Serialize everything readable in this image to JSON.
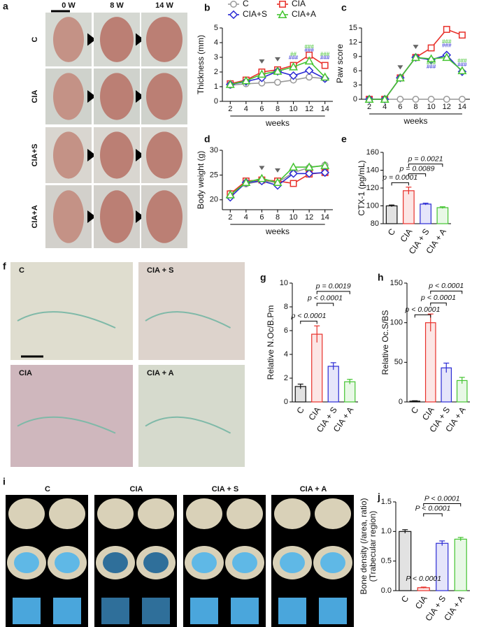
{
  "figure": {
    "a": {
      "label": "a",
      "columns": [
        "0 W",
        "8 W",
        "14 W"
      ],
      "rows": [
        "C",
        "CIA",
        "CIA+S",
        "CIA+A"
      ]
    },
    "f": {
      "label": "f",
      "images": [
        "C",
        "CIA + S",
        "CIA",
        "CIA + A"
      ]
    },
    "i": {
      "label": "i",
      "columns": [
        "C",
        "CIA",
        "CIA + S",
        "CIA + A"
      ]
    }
  },
  "chart_data": [
    {
      "type": "line",
      "panel": "b",
      "ylabel": "Thickness (mm)",
      "xlabel": "weeks",
      "legend": true,
      "x": [
        2,
        4,
        6,
        8,
        10,
        12,
        14
      ],
      "xlim": [
        1,
        15
      ],
      "xticks": [
        2,
        4,
        6,
        8,
        10,
        12,
        14
      ],
      "ylim": [
        0,
        5
      ],
      "yticks": [
        0,
        1,
        2,
        3,
        4,
        5
      ],
      "arrow_weeks": [
        6,
        8
      ],
      "series": [
        {
          "name": "C",
          "color": "#999999",
          "marker": "circle",
          "values": [
            1.1,
            1.2,
            1.25,
            1.3,
            1.45,
            1.65,
            1.55
          ]
        },
        {
          "name": "CIA",
          "color": "#e8302a",
          "marker": "square",
          "values": [
            1.2,
            1.45,
            2.0,
            2.15,
            2.45,
            3.15,
            2.45
          ]
        },
        {
          "name": "CIA+S",
          "color": "#2b2bd4",
          "marker": "diamond",
          "values": [
            1.15,
            1.35,
            1.6,
            2.05,
            1.75,
            2.1,
            1.55
          ]
        },
        {
          "name": "CIA+A",
          "color": "#44c431",
          "marker": "triangle",
          "values": [
            1.15,
            1.4,
            1.85,
            2.05,
            2.35,
            2.75,
            1.65
          ]
        }
      ],
      "annotations": [
        {
          "x": 10,
          "y": 3.2,
          "text": "##",
          "color": "#44c431"
        },
        {
          "x": 10,
          "y": 2.95,
          "text": "###",
          "color": "#2b2bd4"
        },
        {
          "x": 12,
          "y": 3.7,
          "text": "###",
          "color": "#44c431"
        },
        {
          "x": 12,
          "y": 3.45,
          "text": "###",
          "color": "#2b2bd4"
        },
        {
          "x": 14,
          "y": 3.2,
          "text": "###",
          "color": "#44c431"
        },
        {
          "x": 14,
          "y": 2.95,
          "text": "###",
          "color": "#2b2bd4"
        }
      ]
    },
    {
      "type": "line",
      "panel": "c",
      "ylabel": "Paw score",
      "xlabel": "weeks",
      "legend": false,
      "x": [
        2,
        4,
        6,
        8,
        10,
        12,
        14
      ],
      "xlim": [
        1,
        15
      ],
      "xticks": [
        2,
        4,
        6,
        8,
        10,
        12,
        14
      ],
      "ylim": [
        0,
        15
      ],
      "yticks": [
        0,
        3,
        6,
        9,
        12,
        15
      ],
      "arrow_weeks": [
        6,
        8
      ],
      "series": [
        {
          "name": "C",
          "color": "#999999",
          "marker": "circle",
          "values": [
            0,
            0,
            0,
            0,
            0,
            0,
            0
          ]
        },
        {
          "name": "CIA",
          "color": "#e8302a",
          "marker": "square",
          "values": [
            0,
            0,
            4.5,
            8.8,
            10.8,
            14.7,
            13.5
          ]
        },
        {
          "name": "CIA+S",
          "color": "#2b2bd4",
          "marker": "diamond",
          "values": [
            0,
            0,
            4.5,
            8.8,
            8.3,
            9.3,
            5.8
          ]
        },
        {
          "name": "CIA+A",
          "color": "#44c431",
          "marker": "triangle",
          "values": [
            0,
            0,
            4.5,
            8.8,
            8.5,
            8.8,
            6.0
          ]
        }
      ],
      "annotations": [
        {
          "x": 10,
          "y": 7.6,
          "text": "###",
          "color": "#44c431"
        },
        {
          "x": 10,
          "y": 6.8,
          "text": "###",
          "color": "#2b2bd4"
        },
        {
          "x": 12,
          "y": 12.1,
          "text": "###",
          "color": "#44c431"
        },
        {
          "x": 12,
          "y": 11.3,
          "text": "###",
          "color": "#2b2bd4"
        },
        {
          "x": 14,
          "y": 8.0,
          "text": "###",
          "color": "#44c431"
        },
        {
          "x": 14,
          "y": 7.2,
          "text": "###",
          "color": "#2b2bd4"
        }
      ]
    },
    {
      "type": "line",
      "panel": "d",
      "ylabel": "Body weight (g)",
      "xlabel": "weeks",
      "legend": false,
      "x": [
        2,
        4,
        6,
        8,
        10,
        12,
        14
      ],
      "xlim": [
        1,
        15
      ],
      "xticks": [
        2,
        4,
        6,
        8,
        10,
        12,
        14
      ],
      "ylim": [
        18,
        30
      ],
      "yticks": [
        20,
        25,
        30
      ],
      "arrow_weeks": [
        6,
        8
      ],
      "series": [
        {
          "name": "C",
          "color": "#999999",
          "marker": "circle",
          "values": [
            21.3,
            23.2,
            23.8,
            23.5,
            25.5,
            26.5,
            27.0
          ]
        },
        {
          "name": "CIA",
          "color": "#e8302a",
          "marker": "square",
          "values": [
            21.2,
            23.8,
            24.0,
            23.8,
            23.3,
            25.2,
            25.5
          ]
        },
        {
          "name": "CIA+S",
          "color": "#2b2bd4",
          "marker": "diamond",
          "values": [
            20.5,
            23.5,
            23.8,
            22.9,
            25.3,
            25.3,
            25.5
          ]
        },
        {
          "name": "CIA+A",
          "color": "#44c431",
          "marker": "triangle",
          "values": [
            21.0,
            23.5,
            24.3,
            23.5,
            26.6,
            26.6,
            26.9
          ]
        }
      ]
    },
    {
      "type": "bar",
      "panel": "e",
      "ylabel": "CTX-1 (pg/mL)",
      "categories": [
        "C",
        "CIA",
        "CIA + S",
        "CIA + A"
      ],
      "values": [
        100,
        117,
        102,
        98
      ],
      "errors": [
        1,
        4,
        1,
        1
      ],
      "colors": [
        "#111111",
        "#e8302a",
        "#2b2bd4",
        "#44c431"
      ],
      "ylim": [
        80,
        160
      ],
      "yticks": [
        80,
        100,
        120,
        140,
        160
      ],
      "brackets": [
        {
          "from": 0,
          "to": 1,
          "y": 126,
          "label": "p = 0.0001"
        },
        {
          "from": 1,
          "to": 2,
          "y": 136,
          "label": "p = 0.0089"
        },
        {
          "from": 1,
          "to": 3,
          "y": 147,
          "label": "p = 0.0021"
        }
      ]
    },
    {
      "type": "bar",
      "panel": "g",
      "ylabel": "Relative N.Oc/B.Pm",
      "categories": [
        "C",
        "CIA",
        "CIA + S",
        "CIA + A"
      ],
      "values": [
        1.3,
        5.7,
        3.0,
        1.7
      ],
      "errors": [
        0.2,
        0.7,
        0.3,
        0.2
      ],
      "colors": [
        "#111111",
        "#e8302a",
        "#2b2bd4",
        "#44c431"
      ],
      "ylim": [
        0,
        10
      ],
      "yticks": [
        0,
        2,
        4,
        6,
        8,
        10
      ],
      "brackets": [
        {
          "from": 0,
          "to": 1,
          "y": 6.8,
          "label": "p < 0.0001"
        },
        {
          "from": 1,
          "to": 2,
          "y": 8.3,
          "label": "p < 0.0001"
        },
        {
          "from": 1,
          "to": 3,
          "y": 9.3,
          "label": "p = 0.0019"
        }
      ]
    },
    {
      "type": "bar",
      "panel": "h",
      "ylabel": "Relative Oc.S/BS",
      "categories": [
        "C",
        "CIA",
        "CIA + S",
        "CIA + A"
      ],
      "values": [
        1,
        100,
        43,
        27
      ],
      "errors": [
        0.5,
        11,
        6,
        4
      ],
      "colors": [
        "#111111",
        "#e8302a",
        "#2b2bd4",
        "#44c431"
      ],
      "ylim": [
        0,
        150
      ],
      "yticks": [
        0,
        50,
        100,
        150
      ],
      "brackets": [
        {
          "from": 0,
          "to": 1,
          "y": 110,
          "label": "p < 0.0001"
        },
        {
          "from": 1,
          "to": 2,
          "y": 125,
          "label": "p < 0.0001"
        },
        {
          "from": 1,
          "to": 3,
          "y": 140,
          "label": "p < 0.0001"
        }
      ]
    },
    {
      "type": "bar",
      "panel": "j",
      "ylabel": [
        "Bone density (/area, ratio)",
        "(Trabecular region)"
      ],
      "categories": [
        "C",
        "CIA",
        "CIA + S",
        "CIA + A"
      ],
      "values": [
        1.0,
        0.05,
        0.8,
        0.87
      ],
      "errors": [
        0.03,
        0.01,
        0.04,
        0.03
      ],
      "colors": [
        "#111111",
        "#e8302a",
        "#2b2bd4",
        "#44c431"
      ],
      "ylim": [
        0,
        1.5
      ],
      "yticks": [
        {
          "value": 0,
          "label": "0.0"
        },
        {
          "value": 0.5,
          "label": "0.5"
        },
        {
          "value": 1,
          "label": "1.0"
        },
        {
          "value": 1.5,
          "label": "1.5"
        }
      ],
      "annotations": [
        {
          "x": 1,
          "y": 0.2,
          "text": "P < 0.0001",
          "color": "#111111"
        }
      ],
      "brackets": [
        {
          "from": 1,
          "to": 2,
          "y": 1.3,
          "label": "P < 0.0001"
        },
        {
          "from": 1,
          "to": 3,
          "y": 1.47,
          "label": "P < 0.0001"
        }
      ]
    }
  ]
}
